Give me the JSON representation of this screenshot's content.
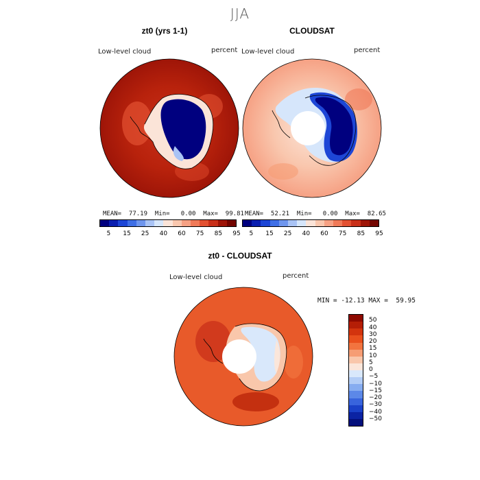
{
  "title": "JJA",
  "panels": [
    {
      "title": "zt0 (yrs 1-1)",
      "var_label": "Low-level cloud",
      "units": "percent",
      "stats": "MEAN=  77.19  Min=   0.00  Max=  99.81"
    },
    {
      "title": "CLOUDSAT",
      "var_label": "Low-level cloud",
      "units": "percent",
      "stats": "MEAN=  52.21  Min=   0.00  Max=  82.65"
    },
    {
      "title": "zt0 - CLOUDSAT",
      "var_label": "Low-level cloud",
      "units": "percent",
      "stats": "MIN = -12.13 MAX =  59.95"
    }
  ],
  "abs_colorbar": {
    "colors": [
      "#00007f",
      "#0a1fb0",
      "#1d46d6",
      "#3f6fe6",
      "#6f96ee",
      "#a9c3f5",
      "#d6e6fb",
      "#fbe4d8",
      "#f9c7ae",
      "#f6a184",
      "#f07a58",
      "#e35132",
      "#c9301a",
      "#9e1508",
      "#730500"
    ],
    "tick_labels": [
      "5",
      "15",
      "25",
      "40",
      "60",
      "75",
      "85",
      "95"
    ]
  },
  "diff_colorbar": {
    "colors": [
      "#8e0a00",
      "#b51e06",
      "#d3340e",
      "#e9501d",
      "#f2743f",
      "#f69d74",
      "#f9c7ab",
      "#fbe6da",
      "#d9e8fb",
      "#b3cdf6",
      "#86acf0",
      "#5c88e8",
      "#3864dd",
      "#1a41c8",
      "#0b23a3",
      "#04107c"
    ],
    "tick_labels": [
      "50",
      "40",
      "30",
      "20",
      "15",
      "10",
      "5",
      "0",
      "−5",
      "−10",
      "−15",
      "−20",
      "−30",
      "−40",
      "−50"
    ]
  }
}
